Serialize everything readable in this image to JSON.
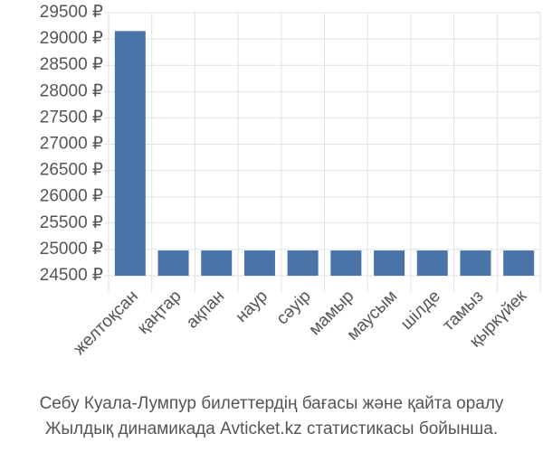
{
  "chart_data": {
    "type": "bar",
    "categories": [
      "желтоқсан",
      "қаңтар",
      "ақпан",
      "наур",
      "сәуір",
      "мамыр",
      "маусым",
      "шілде",
      "тамыз",
      "қыркүйек"
    ],
    "values": [
      29150,
      24980,
      24980,
      24980,
      24980,
      24980,
      24980,
      24980,
      24980,
      24980
    ],
    "color": "#4a74a8",
    "ylim": [
      24500,
      29500
    ],
    "yticks": [
      {
        "value": 24500,
        "label": "24500 ₽"
      },
      {
        "value": 25000,
        "label": "25000 ₽"
      },
      {
        "value": 25500,
        "label": "25500 ₽"
      },
      {
        "value": 26000,
        "label": "26000 ₽"
      },
      {
        "value": 26500,
        "label": "26500 ₽"
      },
      {
        "value": 27000,
        "label": "27000 ₽"
      },
      {
        "value": 27500,
        "label": "27500 ₽"
      },
      {
        "value": 28000,
        "label": "28000 ₽"
      },
      {
        "value": 28500,
        "label": "28500 ₽"
      },
      {
        "value": 29000,
        "label": "29000 ₽"
      },
      {
        "value": 29500,
        "label": "29500 ₽"
      }
    ],
    "grid": true,
    "caption": [
      "Себу Куала-Лумпур билеттердің бағасы және қайта оралу",
      "Жылдық динамикада Avticket.kz статистикасы бойынша."
    ]
  }
}
